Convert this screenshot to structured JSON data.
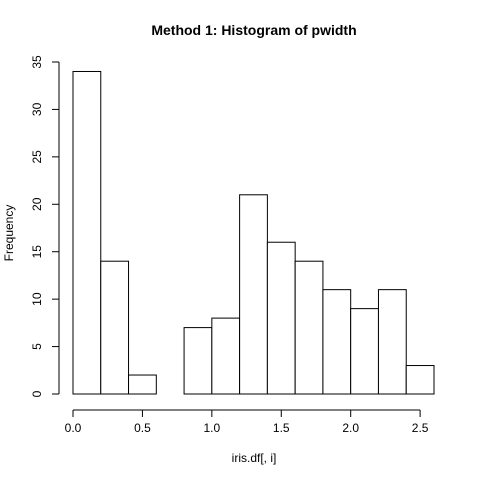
{
  "chart_data": {
    "type": "bar",
    "title": "Method 1: Histogram of pwidth",
    "xlabel": "iris.df[, i]",
    "ylabel": "Frequency",
    "bins": [
      {
        "from": 0.0,
        "to": 0.2,
        "count": 34
      },
      {
        "from": 0.2,
        "to": 0.4,
        "count": 14
      },
      {
        "from": 0.4,
        "to": 0.6,
        "count": 2
      },
      {
        "from": 0.6,
        "to": 0.8,
        "count": 0
      },
      {
        "from": 0.8,
        "to": 1.0,
        "count": 7
      },
      {
        "from": 1.0,
        "to": 1.2,
        "count": 8
      },
      {
        "from": 1.2,
        "to": 1.4,
        "count": 21
      },
      {
        "from": 1.4,
        "to": 1.6,
        "count": 16
      },
      {
        "from": 1.6,
        "to": 1.8,
        "count": 14
      },
      {
        "from": 1.8,
        "to": 2.0,
        "count": 11
      },
      {
        "from": 2.0,
        "to": 2.2,
        "count": 9
      },
      {
        "from": 2.2,
        "to": 2.4,
        "count": 11
      },
      {
        "from": 2.4,
        "to": 2.6,
        "count": 3
      }
    ],
    "xticks": [
      {
        "value": 0.0,
        "label": "0.0"
      },
      {
        "value": 0.5,
        "label": "0.5"
      },
      {
        "value": 1.0,
        "label": "1.0"
      },
      {
        "value": 1.5,
        "label": "1.5"
      },
      {
        "value": 2.0,
        "label": "2.0"
      },
      {
        "value": 2.5,
        "label": "2.5"
      }
    ],
    "yticks": [
      {
        "value": 0,
        "label": "0"
      },
      {
        "value": 5,
        "label": "5"
      },
      {
        "value": 10,
        "label": "10"
      },
      {
        "value": 15,
        "label": "15"
      },
      {
        "value": 20,
        "label": "20"
      },
      {
        "value": 25,
        "label": "25"
      },
      {
        "value": 30,
        "label": "30"
      },
      {
        "value": 35,
        "label": "35"
      }
    ],
    "xlim": [
      0.0,
      2.6
    ],
    "ylim": [
      0,
      35
    ],
    "grid": false,
    "colors": {
      "bar_fill": "#ffffff",
      "bar_stroke": "#000000"
    }
  }
}
